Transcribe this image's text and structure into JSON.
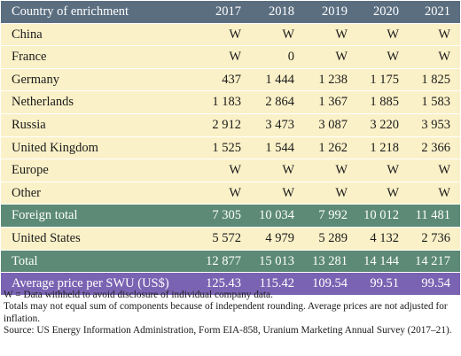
{
  "table": {
    "columns": [
      "Country of enrichment",
      "2017",
      "2018",
      "2019",
      "2020",
      "2021"
    ],
    "rows": [
      {
        "name": "China",
        "values": [
          "W",
          "W",
          "W",
          "W",
          "W"
        ],
        "style": "row"
      },
      {
        "name": "France",
        "values": [
          "W",
          "0",
          "W",
          "W",
          "W"
        ],
        "style": "row"
      },
      {
        "name": "Germany",
        "values": [
          "437",
          "1 444",
          "1 238",
          "1 175",
          "1 825"
        ],
        "style": "row"
      },
      {
        "name": "Netherlands",
        "values": [
          "1 183",
          "2 864",
          "1 367",
          "1 885",
          "1 583"
        ],
        "style": "row"
      },
      {
        "name": "Russia",
        "values": [
          "2 912",
          "3 473",
          "3 087",
          "3 220",
          "3 953"
        ],
        "style": "row"
      },
      {
        "name": "United Kingdom",
        "values": [
          "1 525",
          "1 544",
          "1 262",
          "1 218",
          "2 366"
        ],
        "style": "row"
      },
      {
        "name": "Europe",
        "values": [
          "W",
          "W",
          "W",
          "W",
          "W"
        ],
        "style": "row"
      },
      {
        "name": "Other",
        "values": [
          "W",
          "W",
          "W",
          "W",
          "W"
        ],
        "style": "row"
      },
      {
        "name": "Foreign total",
        "values": [
          "7 305",
          "10 034",
          "7 992",
          "10 012",
          "11 481"
        ],
        "style": "green"
      },
      {
        "name": "United States",
        "values": [
          "5 572",
          "4 979",
          "5 289",
          "4 132",
          "2 736"
        ],
        "style": "row"
      },
      {
        "name": "Total",
        "values": [
          "12 877",
          "15 013",
          "13 281",
          "14 144",
          "14 217"
        ],
        "style": "green"
      },
      {
        "name": "Average price per SWU (US$)",
        "values": [
          "125.43",
          "115.42",
          "109.54",
          "99.51",
          "99.54"
        ],
        "style": "purple"
      }
    ]
  },
  "notes": [
    "W = Data withheld to avoid disclosure of individual company data.",
    "Totals may not equal sum of components because of independent rounding. Average prices are not adjusted for inflation.",
    "Source: US Energy Information Administration, Form EIA-858, Uranium Marketing Annual Survey (2017–21)."
  ],
  "colors": {
    "header_bg": "#5b6e80",
    "row_bg": "#fbf1c8",
    "total_bg": "#5c8a76",
    "price_bg": "#7a63b2"
  }
}
